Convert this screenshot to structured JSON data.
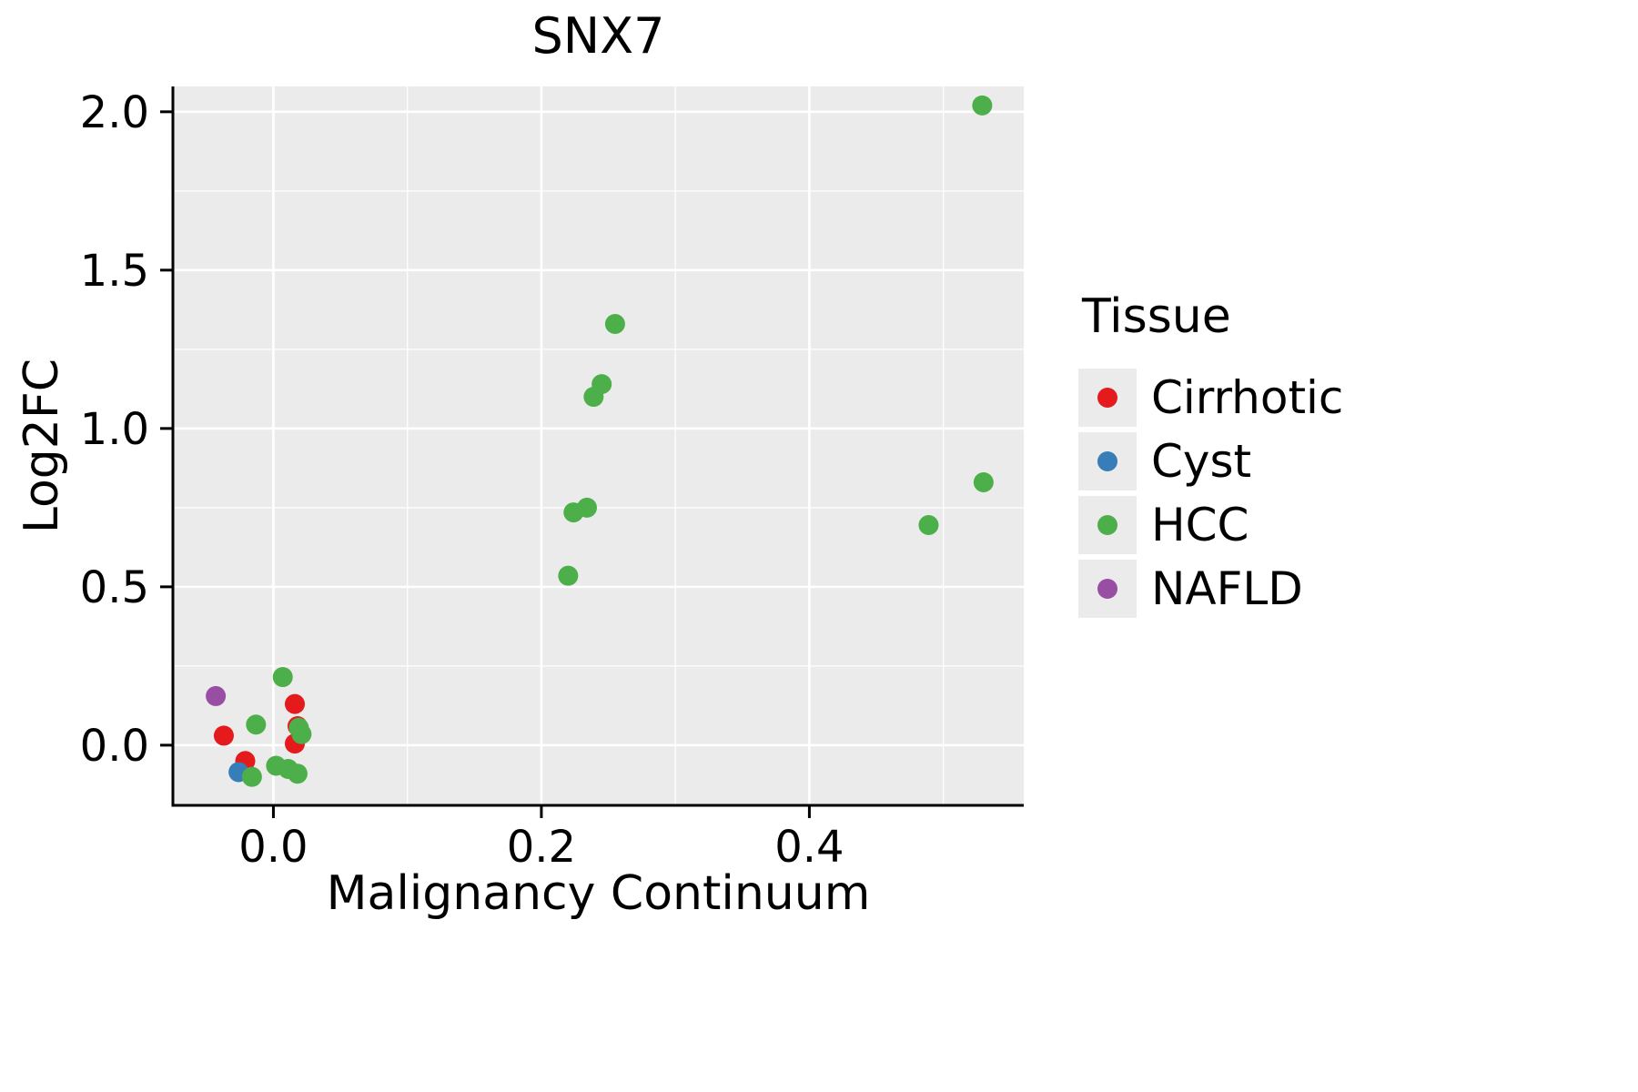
{
  "chart_data": {
    "type": "scatter",
    "title": "SNX7",
    "xlabel": "Malignancy Continuum",
    "ylabel": "Log2FC",
    "xlim": [
      -0.075,
      0.56
    ],
    "ylim": [
      -0.19,
      2.08
    ],
    "xticks": [
      0.0,
      0.2,
      0.4
    ],
    "yticks": [
      0.0,
      0.5,
      1.0,
      1.5,
      2.0
    ],
    "grid": true,
    "panel_bg": "#EBEBEB",
    "grid_color": "#FFFFFF",
    "axis_color": "#000000",
    "point_radius": 11,
    "legend": {
      "title": "Tissue",
      "position": "right"
    },
    "series": [
      {
        "name": "Cirrhotic",
        "color": "#E41A1C",
        "points": [
          [
            -0.037,
            0.03
          ],
          [
            -0.021,
            -0.05
          ],
          [
            0.016,
            0.13
          ],
          [
            0.018,
            0.06
          ],
          [
            0.016,
            0.005
          ]
        ]
      },
      {
        "name": "Cyst",
        "color": "#377EB8",
        "points": [
          [
            -0.026,
            -0.085
          ]
        ]
      },
      {
        "name": "HCC",
        "color": "#4DAF4A",
        "points": [
          [
            -0.016,
            -0.1
          ],
          [
            -0.013,
            0.065
          ],
          [
            0.002,
            -0.065
          ],
          [
            0.007,
            0.215
          ],
          [
            0.011,
            -0.075
          ],
          [
            0.018,
            -0.09
          ],
          [
            0.019,
            0.055
          ],
          [
            0.021,
            0.035
          ],
          [
            0.22,
            0.535
          ],
          [
            0.224,
            0.735
          ],
          [
            0.234,
            0.75
          ],
          [
            0.239,
            1.1
          ],
          [
            0.245,
            1.14
          ],
          [
            0.255,
            1.33
          ],
          [
            0.489,
            0.695
          ],
          [
            0.53,
            0.83
          ],
          [
            0.529,
            2.02
          ]
        ]
      },
      {
        "name": "NAFLD",
        "color": "#984EA3",
        "points": [
          [
            -0.043,
            0.155
          ]
        ]
      }
    ]
  }
}
